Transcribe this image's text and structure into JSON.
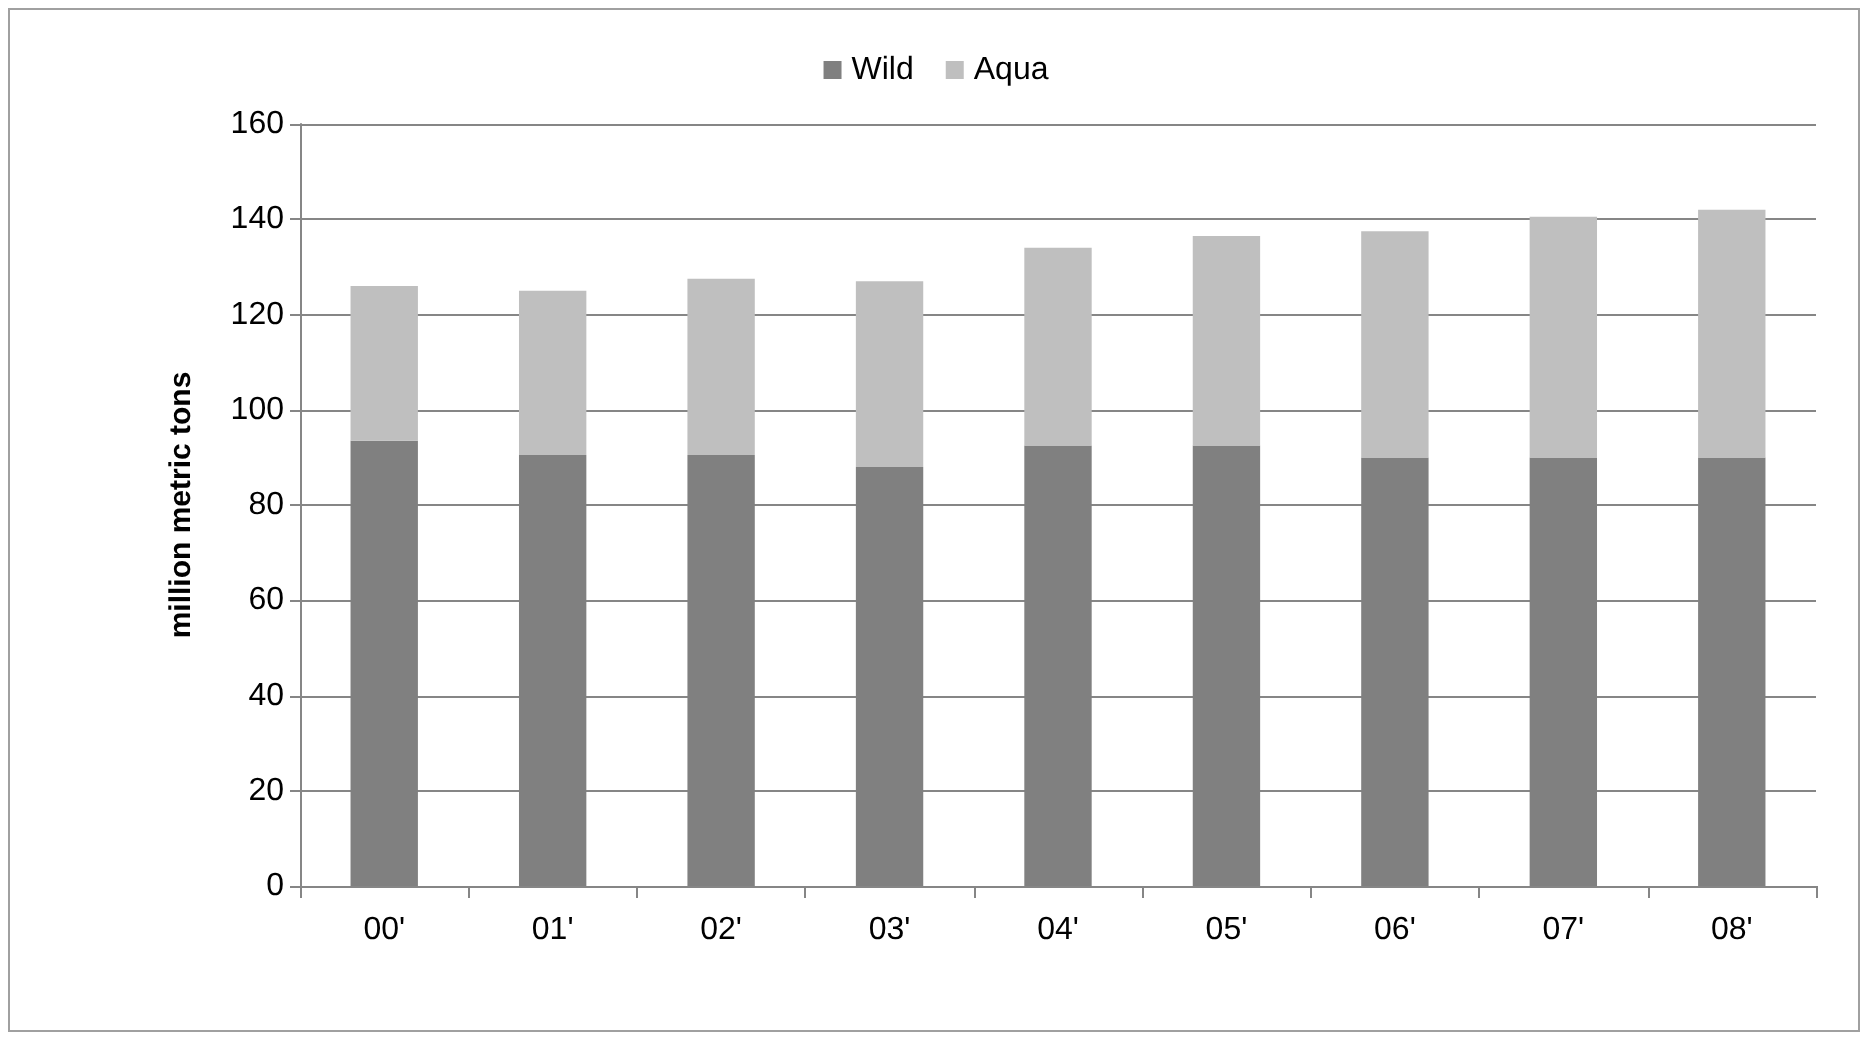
{
  "chart_data": {
    "type": "bar",
    "stacked": true,
    "ylabel": "million metric tons",
    "categories": [
      "00'",
      "01'",
      "02'",
      "03'",
      "04'",
      "05'",
      "06'",
      "07'",
      "08'"
    ],
    "series": [
      {
        "name": "Wild",
        "color": "#808080",
        "values": [
          93.5,
          90.5,
          90.5,
          88,
          92.5,
          92.5,
          90,
          90,
          90
        ]
      },
      {
        "name": "Aqua",
        "color": "#bfbfbf",
        "values": [
          32.5,
          34.5,
          37,
          39,
          41.5,
          44,
          47.5,
          50.5,
          52
        ]
      }
    ],
    "ylim": [
      0,
      160
    ],
    "yticks": [
      0,
      20,
      40,
      60,
      80,
      100,
      120,
      140,
      160
    ],
    "grid": "y",
    "legend": "top"
  }
}
